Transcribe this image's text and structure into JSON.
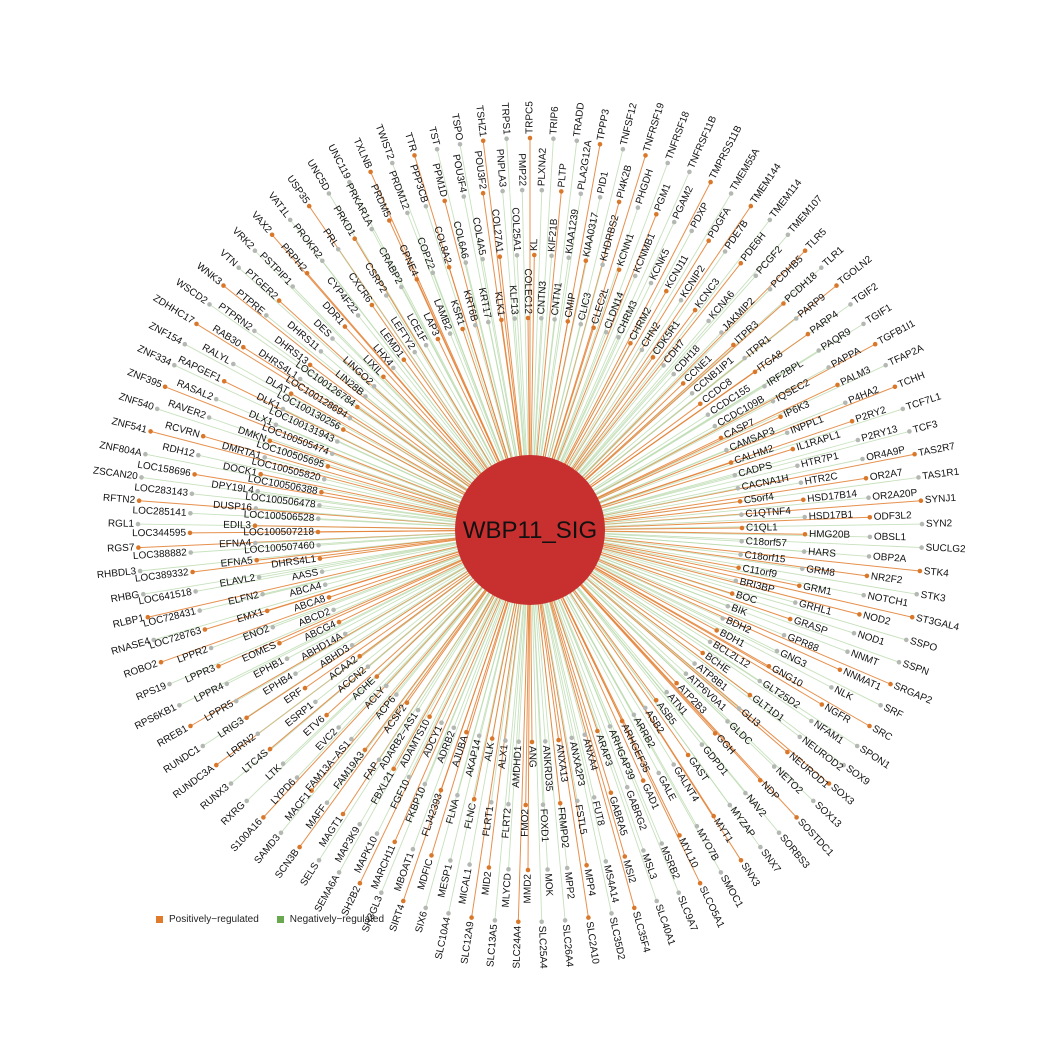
{
  "hub": {
    "label": "WBP11_SIG",
    "color": "#c8302f"
  },
  "colors": {
    "positive_edge": "#e3843a",
    "negative_edge": "#b9d9ad",
    "positive_node": "#d9782a",
    "negative_node": "#b3b8b2"
  },
  "legend": {
    "positive_label": "Positively−regulated",
    "negative_label": "Negatively−regulated",
    "positive_color": "#e07b2b",
    "negative_color": "#6aa84f"
  },
  "rings": {
    "outer": [
      "TRPC5",
      "TRIP6",
      "TRADD",
      "TPPP3",
      "TNFSF12",
      "TNFRSF19",
      "TNFRSF18",
      "TNFRSF11B",
      "TMPRSS11B",
      "TMEM55A",
      "TMEM144",
      "TMEM114",
      "TMEM107",
      "TLR5",
      "TLR1",
      "TGOLN2",
      "TGIF2",
      "TGIF1",
      "TGFB1I1",
      "TFAP2A",
      "TCHH",
      "TCF7L1",
      "TCF3",
      "TAS2R7",
      "TAS1R1",
      "SYNJ1",
      "SYN2",
      "SUCLG2",
      "STK4",
      "STK3",
      "ST3GAL4",
      "SSPO",
      "SSPN",
      "SRGAP2",
      "SRF",
      "SRC",
      "SPON1",
      "SOX9",
      "SOX3",
      "SOX13",
      "SOSTDC1",
      "SORBS3",
      "SNX7",
      "SNX3",
      "SMOC1",
      "SLCO5A1",
      "SLC9A7",
      "SLC40A1",
      "SLC35F4",
      "SLC35D2",
      "SLC2A10",
      "SLC26A4",
      "SLC25A4",
      "SLC24A4",
      "SLC13A5",
      "SLC12A9",
      "SLC10A4",
      "SIX6",
      "SIRT4",
      "SH3GL3",
      "SH2B2",
      "SEMA6A",
      "SELS",
      "SCN3B",
      "SAMD3",
      "S100A16",
      "RXRG",
      "RUNX3",
      "RUNDC3A",
      "RUNDC1",
      "RREB1",
      "RPS6KB1",
      "RPS19",
      "ROBO2",
      "RNASE4",
      "RLBP1",
      "RHBG",
      "RHBDL3",
      "RGS7",
      "RGL1",
      "RFTN2",
      "ZSCAN20",
      "ZNF804A",
      "ZNF541",
      "ZNF540",
      "ZNF395",
      "ZNF334",
      "ZNF154",
      "ZDHHC17",
      "WSCD2",
      "WNK3",
      "VTN",
      "VRK2",
      "VAX2",
      "VAT1L",
      "USP35",
      "UNC5D",
      "UNC119",
      "TXLNB",
      "TWIST2",
      "TTR",
      "TST",
      "TSPO",
      "TSHZ1",
      "TRPS1"
    ],
    "middle": [
      "PLXNA2",
      "PLTP",
      "PLA2G12A",
      "PID1",
      "PI4K2B",
      "PHGDH",
      "PGM1",
      "PGAM2",
      "PDXP",
      "PDGFA",
      "PDE7B",
      "PDE6H",
      "PCGF2",
      "PCDHB5",
      "PCDH18",
      "PARP9",
      "PARP4",
      "PAQR9",
      "PAPPA",
      "PALM3",
      "P4HA2",
      "P2RY2",
      "P2RY13",
      "OR4A9P",
      "OR2A7",
      "OR2A20P",
      "ODF3L2",
      "OBSL1",
      "OBP2A",
      "NR2F2",
      "NOTCH1",
      "NOD2",
      "NOD1",
      "NNMT",
      "NNMAT1",
      "NLK",
      "NGFR",
      "NFAM1",
      "NEUROD2",
      "NEUROD1",
      "NETO2",
      "NDP",
      "NAV2",
      "MYZAP",
      "MYT1",
      "MYO7B",
      "MYL10",
      "MSRB2",
      "MSL3",
      "MSI2",
      "MS4A14",
      "MPP4",
      "MPP2",
      "MOK",
      "MMD2",
      "MLYCD",
      "MID2",
      "MICAL1",
      "MESP1",
      "MDFIC",
      "MBOAT1",
      "MARCH11",
      "MAPK10",
      "MAP3K9",
      "MAGT1",
      "MAFF",
      "MACF1",
      "LYPD6",
      "LTK",
      "LTC4S",
      "LRRN2",
      "LRIG3",
      "LPPR5",
      "LPPR4",
      "LPPR3",
      "LPPR2",
      "LOC728763",
      "LOC728431",
      "LOC641518",
      "LOC389332",
      "LOC388882",
      "LOC344595",
      "LOC285141",
      "LOC283143",
      "LOC158696",
      "RDH12",
      "RCVRN",
      "RAVER2",
      "RASAL2",
      "RAPGEF1",
      "RALYL",
      "RAB30",
      "PTPRN2",
      "PTPRE",
      "PTGER2",
      "PSTPIP1",
      "PRPH2",
      "PROKR2",
      "PRL",
      "PRKD1",
      "PRKAR1A",
      "PRDM5",
      "PRDM12",
      "PPP3CB",
      "PPM1D",
      "POU3F4",
      "POU3F2",
      "PNPLA3",
      "PMP22"
    ],
    "inner": [
      "KL",
      "KIF21B",
      "KIAA1239",
      "KIAA0317",
      "KHDRBS2",
      "KCNN1",
      "KCNMB1",
      "KCNK5",
      "KCNJ11",
      "KCNIP2",
      "KCNC3",
      "KCNA6",
      "JAKMIP2",
      "ITPR3",
      "ITPR1",
      "ITGA8",
      "IRF2BPL",
      "IQSEC2",
      "IP6K3",
      "INPPL1",
      "IL1RAPL1",
      "HTR7P1",
      "HTR2C",
      "HSD17B14",
      "HSD17B1",
      "HMG20B",
      "HARS",
      "GRM8",
      "GRM1",
      "GRHL1",
      "GRASP",
      "GPR88",
      "GNG3",
      "GNG10",
      "GLT25D2",
      "GLT1D1",
      "GLI3",
      "GLDC",
      "GGH",
      "GDPD1",
      "GAST",
      "GALNT4",
      "GALE",
      "GAD1",
      "GABRG2",
      "GABRA5",
      "FUT8",
      "FSTL5",
      "FRMPD2",
      "FOXD1",
      "FMO2",
      "FLRT2",
      "FLRT1",
      "FLNC",
      "FLNA",
      "FLJ42393",
      "FKBP10",
      "FGF10",
      "FBXL21",
      "FAP",
      "FAM19A3",
      "FAM13A−AS1",
      "EVC2",
      "ETV6",
      "ESRP1",
      "ERF",
      "EPHB4",
      "EPHB1",
      "EOMES",
      "ENO2",
      "EMX1",
      "ELFN2",
      "ELAVL2",
      "EFNA5",
      "EFNA4",
      "EDIL3",
      "DUSP16",
      "DPY19L4",
      "DOCK1",
      "DMRTA1",
      "DMKN",
      "DLX1",
      "DLK1",
      "DLAT",
      "DHRS4L1",
      "DHRS13",
      "DHRS11",
      "DES",
      "DDR1",
      "CYP4F22",
      "CXCR6",
      "CSRP2",
      "CRABP2",
      "CPNE4",
      "COPZ2",
      "COL8A2",
      "COL6A6",
      "COL4A5",
      "COL27A1",
      "COL25A1"
    ],
    "innermost": [
      "CNTN3",
      "CNTN1",
      "CMIP",
      "CLIC3",
      "CLEC2L",
      "CLDN14",
      "CHRM3",
      "CHRM2",
      "CHN2",
      "CDK5R1",
      "CDH7",
      "CDH18",
      "CCNE1",
      "CCNB1IP1",
      "CCDC8",
      "CCDC155",
      "CCDC109B",
      "CASP7",
      "CAMSAP3",
      "CALHM2",
      "CADPS",
      "CACNA1H",
      "C5orf4",
      "C1QTNF4",
      "C1QL1",
      "C18orf57",
      "C18orf15",
      "C11orf9",
      "BRI3BP",
      "BOC",
      "BIK",
      "BDH2",
      "BDH1",
      "BCL2L12",
      "BCHE",
      "ATP8B1",
      "ATP6V0A1",
      "ATP2B3",
      "ATN1",
      "ASB5",
      "ASB2",
      "ARRB2",
      "ARHGEF35",
      "ARHGAP39",
      "ARAP3",
      "ANXA4",
      "ANXA2P3",
      "ANXA13",
      "ANKRD35",
      "ANG",
      "AMDHD1",
      "ALX1",
      "ALK",
      "AKAP14",
      "AJUBA",
      "ADRB2",
      "ADCY1",
      "ADAMTS10",
      "ADARB2−AS1",
      "ACSF2",
      "ACP6",
      "ACLY",
      "ACHE",
      "ACCN2",
      "ACAA2",
      "ABHD3",
      "ABHD14A",
      "ABCG4",
      "ABCD2",
      "ABCA8",
      "ABCA4",
      "AASS",
      "DHRS4L1",
      "LOC100507460",
      "LOC100507218",
      "LOC100506528",
      "LOC100506478",
      "LOC100506388",
      "LOC100505820",
      "LOC100505695",
      "LOC100505474",
      "LOC100131943",
      "LOC100130256",
      "LOC100128694",
      "LOC100126784",
      "LIN28B",
      "LINGO2",
      "LIXIL",
      "LHX4",
      "LEMD1",
      "LEFTY2",
      "LCE1F",
      "LAP3",
      "LAMB2",
      "KSR1",
      "KRT6B",
      "KRT17",
      "KLK1",
      "KLF13",
      "COLEC12"
    ]
  }
}
